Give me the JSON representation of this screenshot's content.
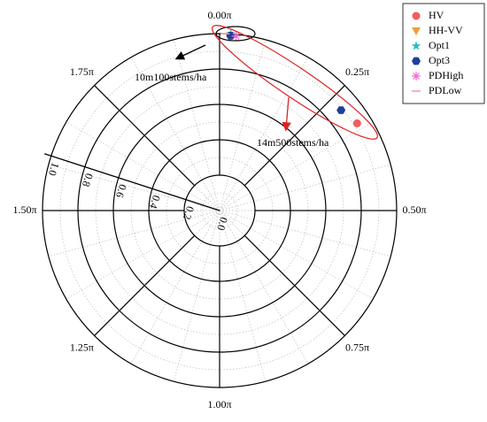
{
  "chart_data": {
    "type": "polar-scatter",
    "rlim": [
      0,
      1
    ],
    "rticks": [
      {
        "value": 0,
        "label": "0.0"
      },
      {
        "value": 0.2,
        "label": "0.2"
      },
      {
        "value": 0.4,
        "label": "0.4"
      },
      {
        "value": 0.6,
        "label": "0.6"
      },
      {
        "value": 0.8,
        "label": "0.8"
      },
      {
        "value": 1,
        "label": "1.0"
      }
    ],
    "thetaticks": [
      {
        "value": 0,
        "label": "0.00π"
      },
      {
        "value": 0.25,
        "label": "0.25π"
      },
      {
        "value": 0.5,
        "label": "0.50π"
      },
      {
        "value": 0.75,
        "label": "0.75π"
      },
      {
        "value": 1,
        "label": "1.00π"
      },
      {
        "value": 1.25,
        "label": "1.25π"
      },
      {
        "value": 1.5,
        "label": "1.50π"
      },
      {
        "value": 1.75,
        "label": "1.75π"
      }
    ],
    "series": [
      {
        "name": "HV",
        "color": "#f25c5c",
        "marker": "circle",
        "theta": [
          0.02,
          0.32
        ],
        "r": [
          0.99,
          0.92
        ]
      },
      {
        "name": "HH-VV",
        "color": "#e8a33c",
        "marker": "triangle-down",
        "theta": [
          0.02
        ],
        "r": [
          0.99
        ]
      },
      {
        "name": "Opt1",
        "color": "#1fbfbf",
        "marker": "star",
        "theta": [
          0.02
        ],
        "r": [
          1.0
        ]
      },
      {
        "name": "Opt3",
        "color": "#1f3f99",
        "marker": "hexagon",
        "theta": [
          0.02,
          0.28
        ],
        "r": [
          0.99,
          0.89
        ]
      },
      {
        "name": "PDHigh",
        "color": "#f06ecf",
        "marker": "asterisk",
        "theta": [
          0.03
        ],
        "r": [
          0.99
        ]
      },
      {
        "name": "PDLow",
        "color": "#f59a9a",
        "marker": "dash",
        "theta": [
          0.01
        ],
        "r": [
          1.0
        ]
      }
    ],
    "annotations": [
      "10m100stems/ha",
      "14m500stems/ha"
    ],
    "grid": true,
    "legend": "upper right"
  }
}
